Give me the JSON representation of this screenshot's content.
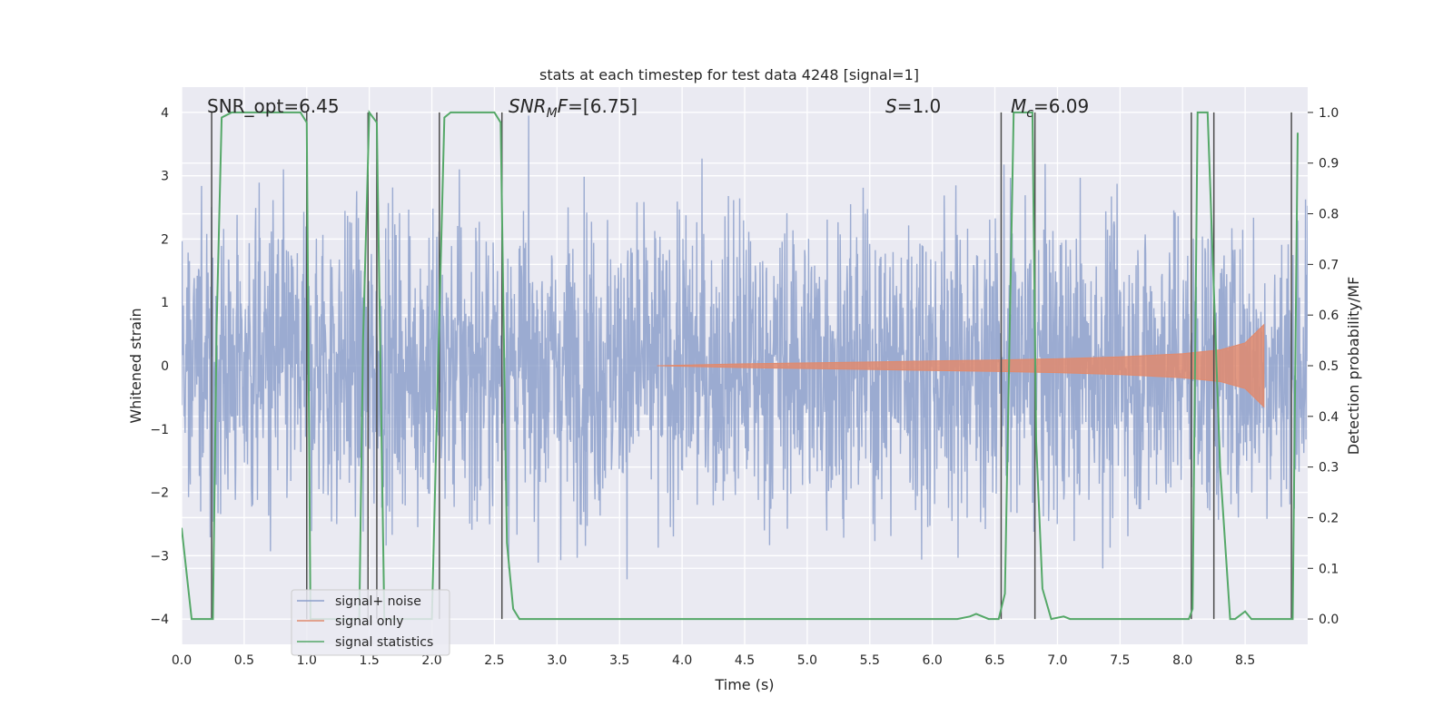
{
  "chart_data": {
    "type": "line",
    "title": "stats at each timestep for test data 4248 [signal=1]",
    "xlabel": "Time (s)",
    "ylabel_left": "Whitened strain",
    "ylabel_right": "Detection probability/MF",
    "xlim": [
      0.0,
      9.0
    ],
    "ylim_left": [
      -4.4,
      4.4
    ],
    "ylim_right": [
      -0.05,
      1.05
    ],
    "x_ticks": [
      0.0,
      0.5,
      1.0,
      1.5,
      2.0,
      2.5,
      3.0,
      3.5,
      4.0,
      4.5,
      5.0,
      5.5,
      6.0,
      6.5,
      7.0,
      7.5,
      8.0,
      8.5
    ],
    "x_tick_labels": [
      "0.0",
      "0.5",
      "1.0",
      "1.5",
      "2.0",
      "2.5",
      "3.0",
      "3.5",
      "4.0",
      "4.5",
      "5.0",
      "5.5",
      "6.0",
      "6.5",
      "7.0",
      "7.5",
      "8.0",
      "8.5"
    ],
    "y_left_ticks": [
      -4,
      -3,
      -2,
      -1,
      0,
      1,
      2,
      3,
      4
    ],
    "y_left_tick_labels": [
      "−4",
      "−3",
      "−2",
      "−1",
      "0",
      "1",
      "2",
      "3",
      "4"
    ],
    "y_right_ticks": [
      0.0,
      0.1,
      0.2,
      0.3,
      0.4,
      0.5,
      0.6,
      0.7,
      0.8,
      0.9,
      1.0
    ],
    "y_right_tick_labels": [
      "0.0",
      "0.1",
      "0.2",
      "0.3",
      "0.4",
      "0.5",
      "0.6",
      "0.7",
      "0.8",
      "0.9",
      "1.0"
    ],
    "grid": true,
    "background": "#eaeaf2",
    "annotations": [
      {
        "text": "SNR_opt=6.45"
      },
      {
        "text": "=[6.75]",
        "prefix": "SNR",
        "sub": "M",
        "mid": "F"
      },
      {
        "text": "=1.0",
        "prefix": "S"
      },
      {
        "text": "=6.09",
        "prefix": "M",
        "sub": "c"
      }
    ],
    "legend": {
      "placement": "lower-left",
      "entries": [
        "signal+ noise",
        "signal only",
        "signal statistics"
      ]
    },
    "series": [
      {
        "name": "signal+ noise",
        "color": "#8da0cb",
        "axis": "left",
        "description_values": {
          "x_start": 0.0,
          "x_end": 9.0,
          "typical_range": [
            -2.3,
            2.3
          ],
          "peak_range": [
            -4.0,
            4.0
          ]
        }
      },
      {
        "name": "signal only",
        "color": "#e08a6e",
        "axis": "left",
        "envelope": {
          "x": [
            3.8,
            4.5,
            5.5,
            6.5,
            7.0,
            7.5,
            8.0,
            8.3,
            8.5,
            8.65
          ],
          "amplitude": [
            0.0,
            0.03,
            0.06,
            0.09,
            0.11,
            0.14,
            0.19,
            0.25,
            0.36,
            0.65
          ]
        }
      },
      {
        "name": "signal statistics",
        "color": "#55a868",
        "axis": "right",
        "x": [
          0.0,
          0.08,
          0.25,
          0.28,
          0.32,
          0.4,
          0.95,
          1.0,
          1.03,
          1.42,
          1.45,
          1.5,
          1.56,
          1.62,
          1.65,
          2.0,
          2.05,
          2.1,
          2.15,
          2.5,
          2.55,
          2.6,
          2.65,
          2.7,
          6.2,
          6.3,
          6.35,
          6.45,
          6.53,
          6.58,
          6.65,
          6.8,
          6.83,
          6.88,
          6.95,
          7.05,
          7.1,
          7.25,
          8.05,
          8.08,
          8.12,
          8.2,
          8.3,
          8.38,
          8.42,
          8.5,
          8.55,
          8.7,
          8.88,
          8.92
        ],
        "y": [
          0.18,
          0.0,
          0.0,
          0.58,
          0.99,
          1.0,
          1.0,
          0.98,
          0.0,
          0.0,
          0.55,
          1.0,
          0.98,
          0.0,
          0.0,
          0.0,
          0.5,
          0.99,
          1.0,
          1.0,
          0.98,
          0.15,
          0.02,
          0.0,
          0.0,
          0.005,
          0.01,
          0.0,
          0.0,
          0.05,
          1.0,
          1.0,
          0.35,
          0.06,
          0.0,
          0.005,
          0.0,
          0.0,
          0.0,
          0.02,
          1.0,
          1.0,
          0.3,
          0.0,
          0.0,
          0.015,
          0.0,
          0.0,
          0.0,
          0.96
        ]
      }
    ],
    "vlines": {
      "color": "#4c4c4c",
      "x": [
        0.24,
        1.0,
        1.49,
        1.56,
        2.06,
        2.56,
        6.55,
        6.82,
        8.07,
        8.25,
        8.87
      ]
    }
  }
}
